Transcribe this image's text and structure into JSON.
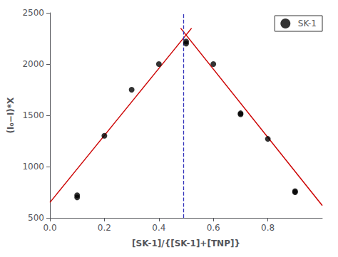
{
  "chart_data": {
    "type": "scatter",
    "xlabel": "[SK-1]/{[SK-1]+[TNP]}",
    "ylabel": "(I₀−I)*X",
    "series": [
      {
        "type": "line",
        "color": "#cc0000",
        "x": [
          0.0,
          0.52
        ],
        "values": [
          650,
          2350
        ]
      },
      {
        "type": "line",
        "color": "#cc0000",
        "x": [
          0.48,
          1.0
        ],
        "values": [
          2350,
          620
        ]
      },
      {
        "name": "SK-1",
        "type": "scatter",
        "color": "#000000",
        "marker": "circle",
        "x": [
          0.1,
          0.1,
          0.2,
          0.3,
          0.4,
          0.5,
          0.5,
          0.6,
          0.7,
          0.7,
          0.8,
          0.9,
          0.9
        ],
        "values": [
          700,
          720,
          1300,
          1750,
          2000,
          2200,
          2220,
          2000,
          1510,
          1520,
          1270,
          750,
          760
        ]
      }
    ],
    "vline": {
      "x": 0.49,
      "color": "#3333bb",
      "line_style": "dashed"
    },
    "xlim": [
      0.0,
      1.0
    ],
    "xticks": [
      {
        "value": 0,
        "label": "0.0"
      },
      0.2,
      0.4,
      0.6,
      0.8
    ],
    "ylim": [
      500,
      2500
    ],
    "yticks": [
      500,
      1000,
      1500,
      2000,
      2500
    ],
    "legend": "upper right",
    "grid": false
  }
}
